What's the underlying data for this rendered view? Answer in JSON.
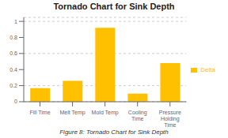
{
  "chart_data": {
    "type": "bar",
    "title": "Tornado Chart for Sink Depth",
    "categories": [
      "Fill Time",
      "Melt Temp",
      "Mold Temp",
      "Cooling\nTime",
      "Pressure\nHolding\nTime"
    ],
    "series": [
      {
        "name": "Delta",
        "color": "#FFC000",
        "values": [
          0.17,
          0.26,
          0.92,
          0.1,
          0.48
        ]
      }
    ],
    "ylim": [
      0,
      1.05
    ],
    "yticks": [
      0,
      0.2,
      0.4,
      0.6,
      0.8,
      1.0
    ],
    "grid": true,
    "legend": "right",
    "caption": "Figure 8: Tornado Chart for Sink Depth"
  }
}
